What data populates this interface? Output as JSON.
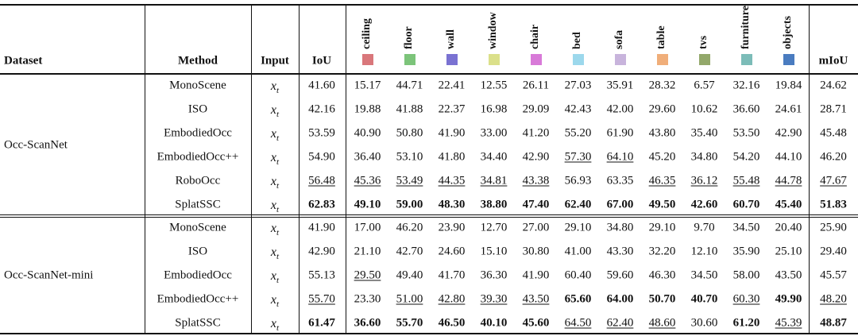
{
  "header": {
    "dataset": "Dataset",
    "method": "Method",
    "input": "Input",
    "iou": "IoU",
    "miou": "mIoU",
    "classes": [
      {
        "name": "ceiling",
        "color": "#d9777b"
      },
      {
        "name": "floor",
        "color": "#7cc47a"
      },
      {
        "name": "wall",
        "color": "#7a72d2"
      },
      {
        "name": "window",
        "color": "#dbe08a"
      },
      {
        "name": "chair",
        "color": "#d87ad8"
      },
      {
        "name": "bed",
        "color": "#9cd8ec"
      },
      {
        "name": "sofa",
        "color": "#c8b4dc"
      },
      {
        "name": "table",
        "color": "#f0ae7a"
      },
      {
        "name": "tvs",
        "color": "#93a86a"
      },
      {
        "name": "furniture",
        "color": "#7cbcb8"
      },
      {
        "name": "objects",
        "color": "#4a7cc0"
      }
    ]
  },
  "groups": [
    {
      "dataset": "Occ-ScanNet",
      "rows": [
        {
          "method": "MonoScene",
          "input": {
            "base": "x",
            "sub": "t"
          },
          "values": [
            "41.60",
            "15.17",
            "44.71",
            "22.41",
            "12.55",
            "26.11",
            "27.03",
            "35.91",
            "28.32",
            "6.57",
            "32.16",
            "19.84",
            "24.62"
          ],
          "bold": [],
          "underline": []
        },
        {
          "method": "ISO",
          "input": {
            "base": "x",
            "sub": "t"
          },
          "values": [
            "42.16",
            "19.88",
            "41.88",
            "22.37",
            "16.98",
            "29.09",
            "42.43",
            "42.00",
            "29.60",
            "10.62",
            "36.60",
            "24.61",
            "28.71"
          ],
          "bold": [],
          "underline": []
        },
        {
          "method": "EmbodiedOcc",
          "input": {
            "base": "x",
            "sub": "t"
          },
          "values": [
            "53.59",
            "40.90",
            "50.80",
            "41.90",
            "33.00",
            "41.20",
            "55.20",
            "61.90",
            "43.80",
            "35.40",
            "53.50",
            "42.90",
            "45.48"
          ],
          "bold": [],
          "underline": []
        },
        {
          "method": "EmbodiedOcc++",
          "input": {
            "base": "x",
            "sub": "t"
          },
          "values": [
            "54.90",
            "36.40",
            "53.10",
            "41.80",
            "34.40",
            "42.90",
            "57.30",
            "64.10",
            "45.20",
            "34.80",
            "54.20",
            "44.10",
            "46.20"
          ],
          "bold": [],
          "underline": [
            6,
            7
          ]
        },
        {
          "method": "RoboOcc",
          "input": {
            "base": "x",
            "sub": "t"
          },
          "values": [
            "56.48",
            "45.36",
            "53.49",
            "44.35",
            "34.81",
            "43.38",
            "56.93",
            "63.35",
            "46.35",
            "36.12",
            "55.48",
            "44.78",
            "47.67"
          ],
          "bold": [],
          "underline": [
            0,
            1,
            2,
            3,
            4,
            5,
            8,
            9,
            10,
            11,
            12
          ]
        },
        {
          "method": "SplatSSC",
          "input": {
            "base": "x",
            "sub": "t"
          },
          "values": [
            "62.83",
            "49.10",
            "59.00",
            "48.30",
            "38.80",
            "47.40",
            "62.40",
            "67.00",
            "49.50",
            "42.60",
            "60.70",
            "45.40",
            "51.83"
          ],
          "bold": [
            0,
            1,
            2,
            3,
            4,
            5,
            6,
            7,
            8,
            9,
            10,
            11,
            12
          ],
          "underline": []
        }
      ]
    },
    {
      "dataset": "Occ-ScanNet-mini",
      "rows": [
        {
          "method": "MonoScene",
          "input": {
            "base": "x",
            "sub": "t"
          },
          "values": [
            "41.90",
            "17.00",
            "46.20",
            "23.90",
            "12.70",
            "27.00",
            "29.10",
            "34.80",
            "29.10",
            "9.70",
            "34.50",
            "20.40",
            "25.90"
          ],
          "bold": [],
          "underline": []
        },
        {
          "method": "ISO",
          "input": {
            "base": "x",
            "sub": "t"
          },
          "values": [
            "42.90",
            "21.10",
            "42.70",
            "24.60",
            "15.10",
            "30.80",
            "41.00",
            "43.30",
            "32.20",
            "12.10",
            "35.90",
            "25.10",
            "29.40"
          ],
          "bold": [],
          "underline": []
        },
        {
          "method": "EmbodiedOcc",
          "input": {
            "base": "x",
            "sub": "t"
          },
          "values": [
            "55.13",
            "29.50",
            "49.40",
            "41.70",
            "36.30",
            "41.90",
            "60.40",
            "59.60",
            "46.30",
            "34.50",
            "58.00",
            "43.50",
            "45.57"
          ],
          "bold": [],
          "underline": [
            1
          ]
        },
        {
          "method": "EmbodiedOcc++",
          "input": {
            "base": "x",
            "sub": "t"
          },
          "values": [
            "55.70",
            "23.30",
            "51.00",
            "42.80",
            "39.30",
            "43.50",
            "65.60",
            "64.00",
            "50.70",
            "40.70",
            "60.30",
            "49.90",
            "48.20"
          ],
          "bold": [
            6,
            7,
            8,
            9,
            11
          ],
          "underline": [
            0,
            2,
            3,
            4,
            5,
            10,
            12
          ]
        },
        {
          "method": "SplatSSC",
          "input": {
            "base": "x",
            "sub": "t"
          },
          "values": [
            "61.47",
            "36.60",
            "55.70",
            "46.50",
            "40.10",
            "45.60",
            "64.50",
            "62.40",
            "48.60",
            "30.60",
            "61.20",
            "45.39",
            "48.87"
          ],
          "bold": [
            0,
            1,
            2,
            3,
            4,
            5,
            10,
            12
          ],
          "underline": [
            6,
            7,
            8,
            11
          ]
        }
      ]
    }
  ]
}
